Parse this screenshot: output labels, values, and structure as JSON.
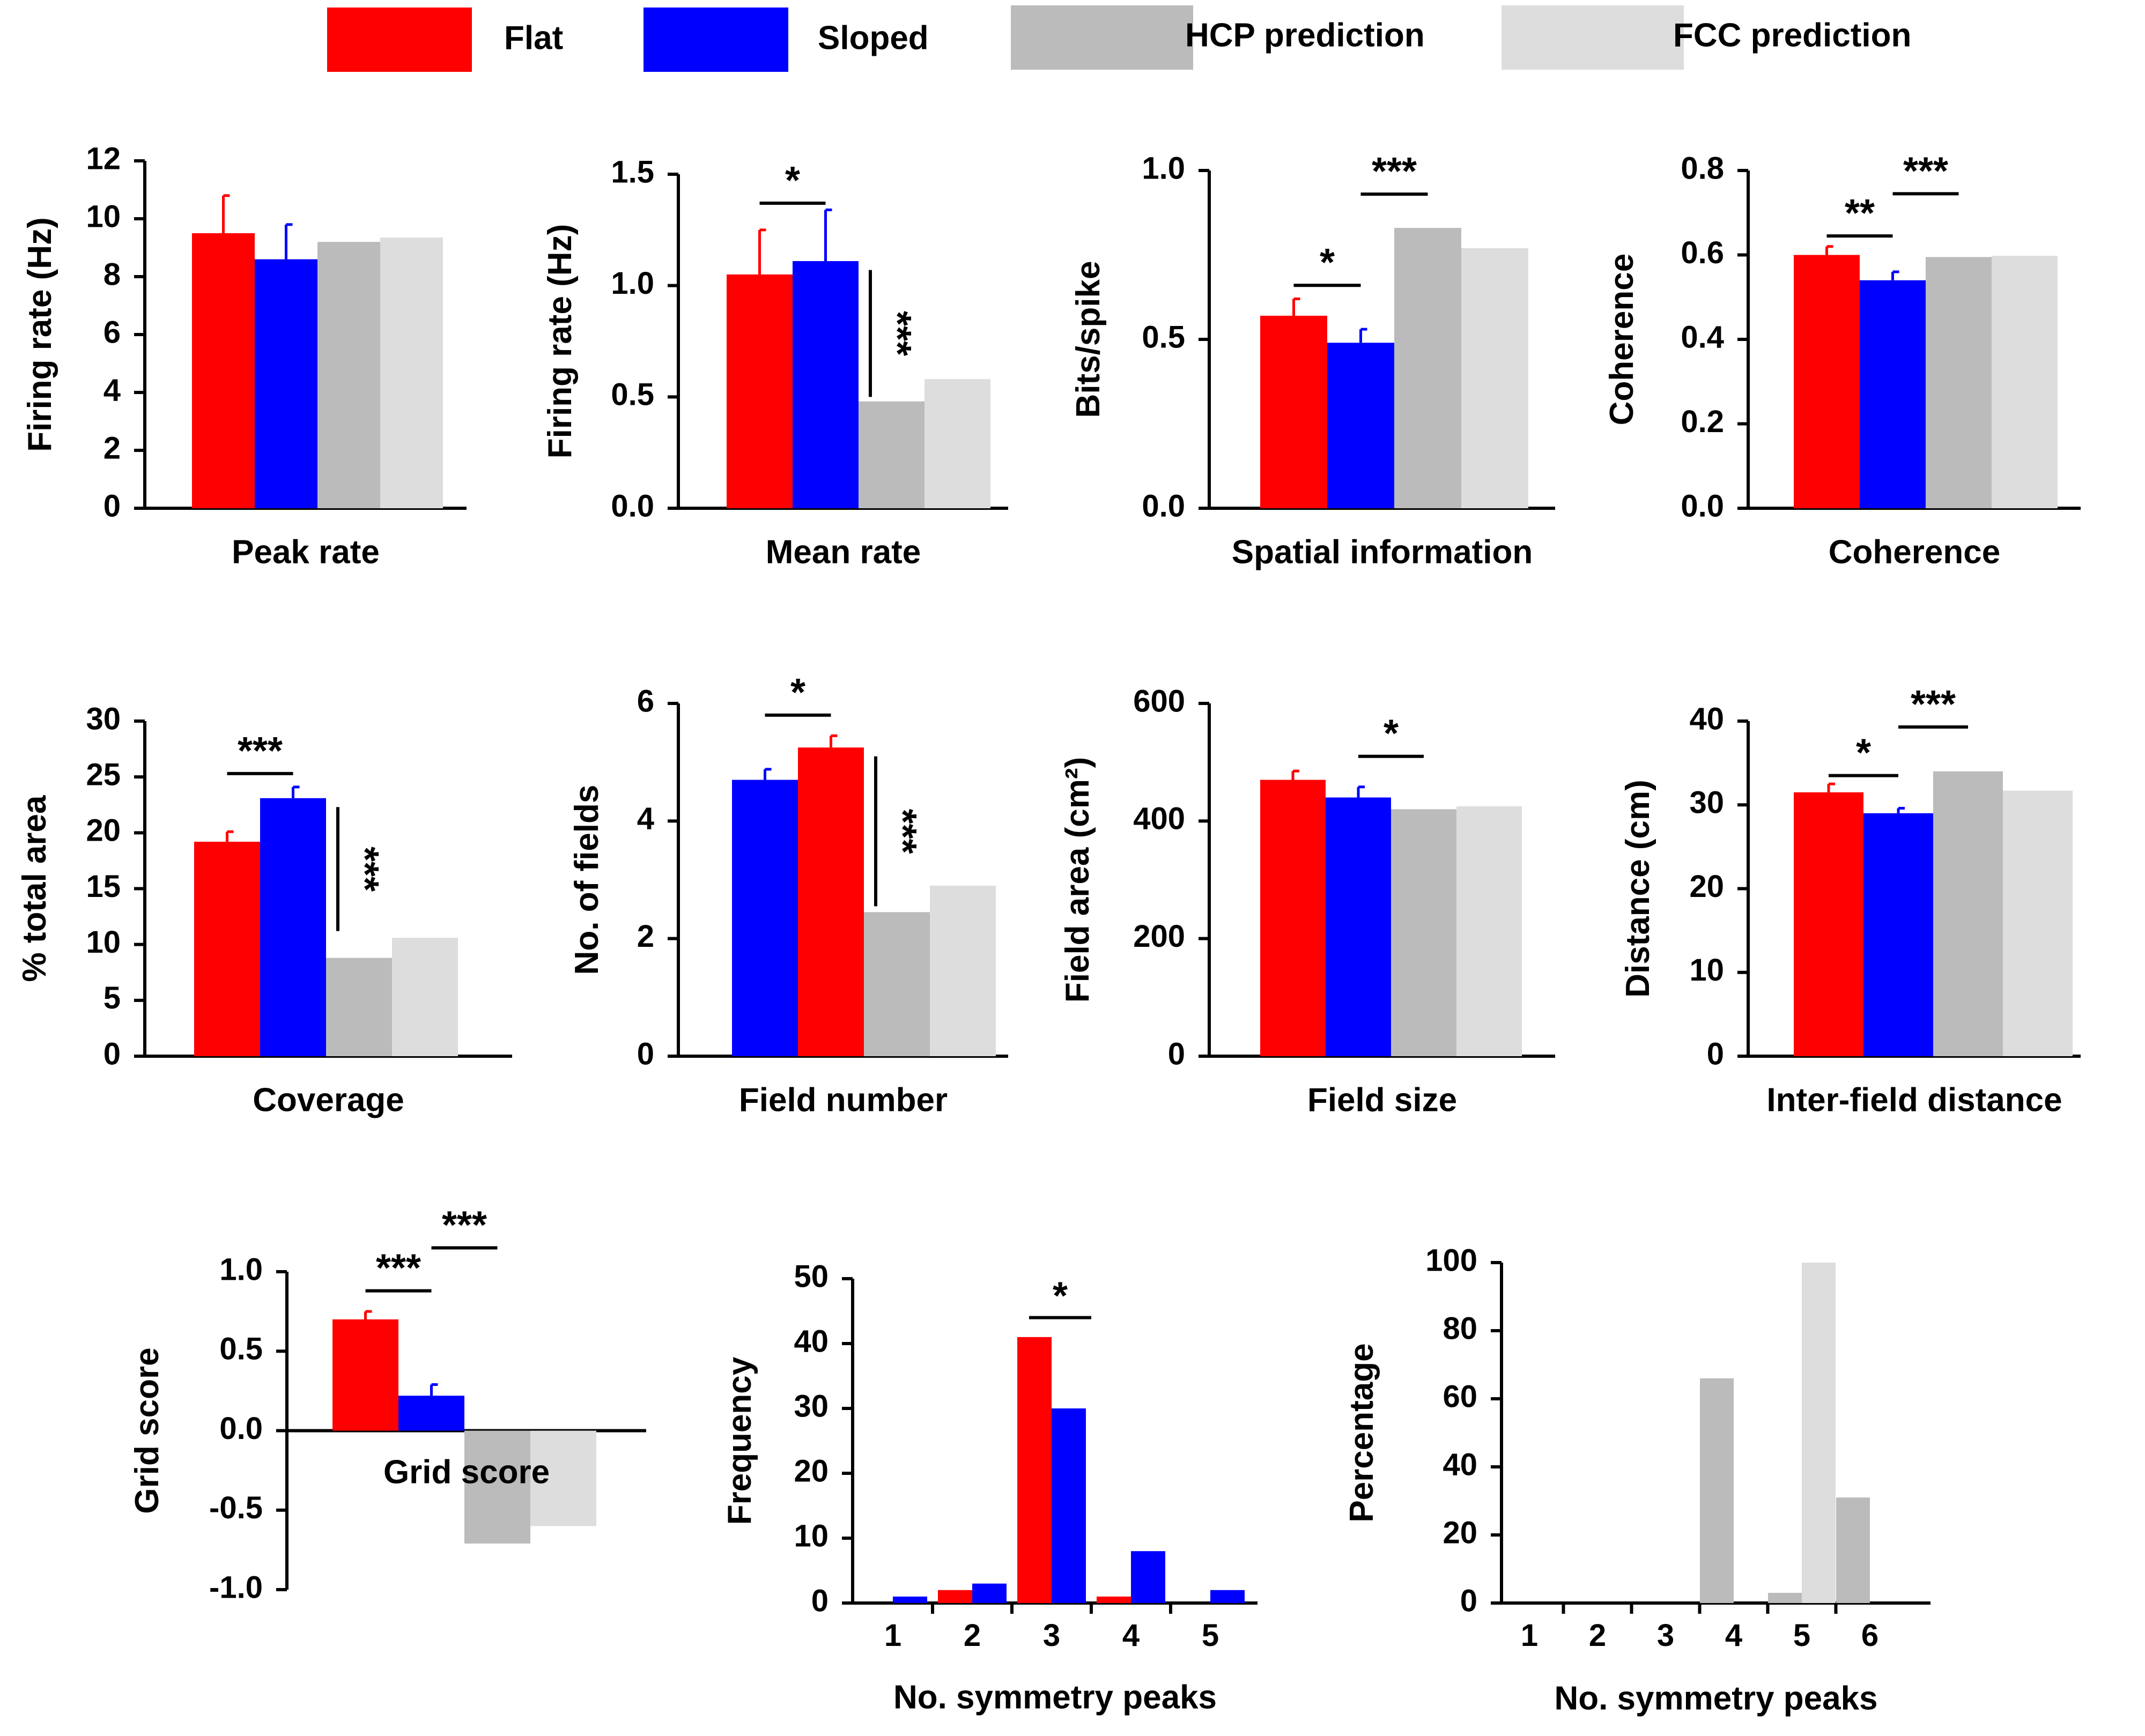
{
  "colors": {
    "flat": "#ff0000",
    "sloped": "#0000ff",
    "hcp": "#bbbbbb",
    "fcc": "#dddddd",
    "axis": "#000000"
  },
  "legend": [
    {
      "label": "Flat",
      "key": "flat"
    },
    {
      "label": "Sloped",
      "key": "sloped"
    },
    {
      "label": "HCP prediction",
      "key": "hcp"
    },
    {
      "label": "FCC prediction",
      "key": "fcc"
    }
  ],
  "chart_data": [
    {
      "type": "bar",
      "title": "Peak rate",
      "ylabel": "Firing rate (Hz)",
      "ylim": [
        0,
        12
      ],
      "ticks": [
        "0",
        "2",
        "4",
        "6",
        "8",
        "10",
        "12"
      ],
      "bars": [
        {
          "group": "flat",
          "value": 9.5,
          "error": 1.3
        },
        {
          "group": "sloped",
          "value": 8.6,
          "error": 1.2
        },
        {
          "group": "hcp",
          "value": 9.2
        },
        {
          "group": "fcc",
          "value": 9.35
        }
      ],
      "annotations": []
    },
    {
      "type": "bar",
      "title": "Mean rate",
      "ylabel": "Firing rate (Hz)",
      "ylim": [
        0,
        1.5
      ],
      "ticks": [
        "0.0",
        "0.5",
        "1.0",
        "1.5"
      ],
      "bars": [
        {
          "group": "flat",
          "value": 1.05,
          "error": 0.2
        },
        {
          "group": "sloped",
          "value": 1.11,
          "error": 0.23
        },
        {
          "group": "hcp",
          "value": 0.48
        },
        {
          "group": "fcc",
          "value": 0.58
        }
      ],
      "annotations": [
        {
          "label": "*",
          "from": 0,
          "to": 1,
          "level": 1.37
        },
        {
          "label": "***",
          "vertical": true,
          "from": 1,
          "top": 1.07,
          "bottom": 0.5
        }
      ]
    },
    {
      "type": "bar",
      "title": "Spatial information",
      "ylabel": "Bits/spike",
      "ylim": [
        0,
        1.0
      ],
      "ticks": [
        "0.0",
        "0.5",
        "1.0"
      ],
      "bars": [
        {
          "group": "flat",
          "value": 0.57,
          "error": 0.05
        },
        {
          "group": "sloped",
          "value": 0.49,
          "error": 0.04
        },
        {
          "group": "hcp",
          "value": 0.83
        },
        {
          "group": "fcc",
          "value": 0.77
        }
      ],
      "annotations": [
        {
          "label": "*",
          "from": 0,
          "to": 1,
          "level": 0.66
        },
        {
          "label": "***",
          "from": 1,
          "to": 2,
          "level": 0.93
        }
      ]
    },
    {
      "type": "bar",
      "title": "Coherence",
      "ylabel": "Coherence",
      "ylim": [
        0,
        0.8
      ],
      "ticks": [
        "0.0",
        "0.2",
        "0.4",
        "0.6",
        "0.8"
      ],
      "bars": [
        {
          "group": "flat",
          "value": 0.6,
          "error": 0.02
        },
        {
          "group": "sloped",
          "value": 0.54,
          "error": 0.02
        },
        {
          "group": "hcp",
          "value": 0.595
        },
        {
          "group": "fcc",
          "value": 0.598
        }
      ],
      "annotations": [
        {
          "label": "**",
          "from": 0,
          "to": 1,
          "level": 0.645
        },
        {
          "label": "***",
          "from": 1,
          "to": 2,
          "level": 0.745
        }
      ]
    },
    {
      "type": "bar",
      "title": "Coverage",
      "ylabel": "% total area",
      "ylim": [
        0,
        30
      ],
      "ticks": [
        "0",
        "5",
        "10",
        "15",
        "20",
        "25",
        "30"
      ],
      "bars": [
        {
          "group": "flat",
          "value": 19.2,
          "error": 0.9
        },
        {
          "group": "sloped",
          "value": 23.1,
          "error": 1.0
        },
        {
          "group": "hcp",
          "value": 8.8
        },
        {
          "group": "fcc",
          "value": 10.6
        }
      ],
      "annotations": [
        {
          "label": "***",
          "from": 0,
          "to": 1,
          "level": 25.3
        },
        {
          "label": "***",
          "vertical": true,
          "from": 1,
          "top": 22.3,
          "bottom": 11.2
        }
      ]
    },
    {
      "type": "bar",
      "title": "Field number",
      "ylabel": "No. of fields",
      "ylim": [
        0,
        6
      ],
      "ticks": [
        "0",
        "2",
        "4",
        "6"
      ],
      "bars": [
        {
          "group": "sloped",
          "value": 4.7,
          "error": 0.18
        },
        {
          "group": "flat",
          "value": 5.25,
          "error": 0.2
        },
        {
          "group": "hcp",
          "value": 2.45
        },
        {
          "group": "fcc",
          "value": 2.9
        }
      ],
      "annotations": [
        {
          "label": "*",
          "from": 0,
          "to": 1,
          "level": 5.8
        },
        {
          "label": "***",
          "vertical": true,
          "from": 1,
          "top": 5.1,
          "bottom": 2.55
        }
      ]
    },
    {
      "type": "bar",
      "title": "Field size",
      "ylabel": "Field area (cm²)",
      "ylim": [
        0,
        600
      ],
      "ticks": [
        "0",
        "200",
        "400",
        "600"
      ],
      "bars": [
        {
          "group": "flat",
          "value": 470,
          "error": 15
        },
        {
          "group": "sloped",
          "value": 440,
          "error": 18
        },
        {
          "group": "hcp",
          "value": 420
        },
        {
          "group": "fcc",
          "value": 425
        }
      ],
      "annotations": [
        {
          "label": "*",
          "from": 1,
          "to": 2,
          "level": 510
        }
      ]
    },
    {
      "type": "bar",
      "title": "Inter-field distance",
      "ylabel": "Distance (cm)",
      "ylim": [
        0,
        40
      ],
      "ticks": [
        "0",
        "10",
        "20",
        "30",
        "40"
      ],
      "bars": [
        {
          "group": "flat",
          "value": 31.5,
          "error": 1.0
        },
        {
          "group": "sloped",
          "value": 29.0,
          "error": 0.6
        },
        {
          "group": "hcp",
          "value": 34.0
        },
        {
          "group": "fcc",
          "value": 31.7
        }
      ],
      "annotations": [
        {
          "label": "*",
          "from": 0,
          "to": 1,
          "level": 33.5
        },
        {
          "label": "***",
          "from": 1,
          "to": 2,
          "level": 39.3
        }
      ]
    },
    {
      "type": "bar",
      "title": "Grid score",
      "ylabel": "Grid score",
      "ylim": [
        -1.0,
        1.0
      ],
      "ticks": [
        "-1.0",
        "-0.5",
        "0.0",
        "0.5",
        "1.0"
      ],
      "bars": [
        {
          "group": "flat",
          "value": 0.7,
          "error": 0.05
        },
        {
          "group": "sloped",
          "value": 0.22,
          "error": 0.07
        },
        {
          "group": "hcp",
          "value": -0.71
        },
        {
          "group": "fcc",
          "value": -0.6
        }
      ],
      "annotations": [
        {
          "label": "***",
          "from": 0,
          "to": 1,
          "level": 0.88
        },
        {
          "label": "***",
          "from": 1,
          "to": 2,
          "level": 1.15
        }
      ]
    },
    {
      "type": "bar",
      "title": "",
      "xlabel": "No. symmetry peaks",
      "ylabel": "Frequency",
      "ylim": [
        0,
        50
      ],
      "ticks": [
        "0",
        "10",
        "20",
        "30",
        "40",
        "50"
      ],
      "categories": [
        "1",
        "2",
        "3",
        "4",
        "5"
      ],
      "series": [
        {
          "name": "Flat",
          "key": "flat",
          "values": [
            0,
            2,
            41,
            1,
            0
          ]
        },
        {
          "name": "Sloped",
          "key": "sloped",
          "values": [
            1,
            3,
            30,
            8,
            2
          ]
        }
      ],
      "annotations": [
        {
          "label": "*",
          "category": 2,
          "level": 44
        }
      ]
    },
    {
      "type": "bar",
      "title": "",
      "xlabel": "No. symmetry peaks",
      "ylabel": "Percentage",
      "ylim": [
        0,
        100
      ],
      "ticks": [
        "0",
        "20",
        "40",
        "60",
        "80",
        "100"
      ],
      "categories": [
        "1",
        "2",
        "3",
        "4",
        "5",
        "6"
      ],
      "series": [
        {
          "name": "HCP prediction",
          "key": "hcp",
          "values": [
            0,
            0,
            0,
            66,
            3,
            31
          ]
        },
        {
          "name": "FCC prediction",
          "key": "fcc",
          "values": [
            0,
            0,
            0,
            0,
            100,
            0
          ]
        }
      ],
      "annotations": []
    }
  ]
}
